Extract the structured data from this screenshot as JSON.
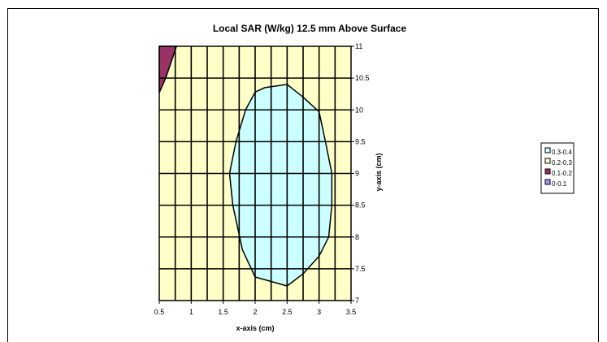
{
  "chart_data": {
    "type": "contour",
    "title": "Local SAR (W/kg) 12.5 mm Above Surface",
    "xlabel": "x-axis (cm)",
    "ylabel": "y-axis (cm)",
    "xlim": [
      0.5,
      3.5
    ],
    "ylim": [
      7,
      11
    ],
    "x_ticks": [
      "0.5",
      "1",
      "1.5",
      "2",
      "2.5",
      "3",
      "3.5"
    ],
    "y_ticks": [
      "7",
      "7.5",
      "8",
      "8.5",
      "9",
      "9.5",
      "10",
      "10.5",
      "11"
    ],
    "grid": true,
    "background_color": "#FFFFC8",
    "legend_position": "right",
    "legend": [
      {
        "label": "0.3-0.4",
        "color": "#CCFFFF"
      },
      {
        "label": "0.2-0.3",
        "color": "#FFFFCC"
      },
      {
        "label": "0.1-0.2",
        "color": "#993366"
      },
      {
        "label": "0-0.1",
        "color": "#9999FF"
      }
    ],
    "regions": [
      {
        "range": "0.3-0.4",
        "color": "#CCFFFF",
        "boundary": [
          [
            2.0,
            10.28
          ],
          [
            2.15,
            10.35
          ],
          [
            2.5,
            10.4
          ],
          [
            2.75,
            10.2
          ],
          [
            3.0,
            9.97
          ],
          [
            3.1,
            9.5
          ],
          [
            3.2,
            9.0
          ],
          [
            3.2,
            8.5
          ],
          [
            3.15,
            8.0
          ],
          [
            3.0,
            7.7
          ],
          [
            2.75,
            7.42
          ],
          [
            2.5,
            7.23
          ],
          [
            2.0,
            7.37
          ],
          [
            1.8,
            7.8
          ],
          [
            1.65,
            8.5
          ],
          [
            1.6,
            9.0
          ],
          [
            1.7,
            9.5
          ],
          [
            1.85,
            10.0
          ]
        ]
      },
      {
        "range": "0.1-0.2",
        "color": "#993366",
        "boundary": [
          [
            0.5,
            11.0
          ],
          [
            0.77,
            11.0
          ],
          [
            0.6,
            10.5
          ],
          [
            0.5,
            10.27
          ]
        ]
      }
    ]
  }
}
